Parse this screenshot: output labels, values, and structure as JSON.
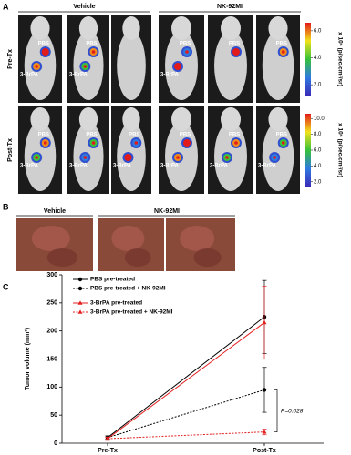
{
  "panel_a": {
    "label": "A",
    "groups": [
      "Vehicle",
      "NK-92MI"
    ],
    "rows": [
      {
        "name": "Pre-Tx",
        "colorbar": {
          "unit": "x 10⁶ (p/sec/cm²/sr)",
          "lim": [
            1.2,
            6.6
          ],
          "ticks": [
            {
              "value": 2,
              "label": "2.0"
            },
            {
              "value": 4,
              "label": "4.0"
            },
            {
              "value": 6,
              "label": "6.0"
            }
          ]
        },
        "mice": [
          {
            "labels": [
              "PBS",
              "3-BrPA"
            ]
          },
          {
            "labels": [
              "PBS",
              "3-BrPA"
            ]
          },
          {
            "labels": []
          },
          {
            "labels": [
              "PBS",
              "3-BrPA"
            ]
          },
          {
            "labels": [
              "PBS"
            ]
          },
          {
            "labels": [
              "PBS"
            ]
          }
        ]
      },
      {
        "name": "Post-Tx",
        "colorbar": {
          "unit": "x 10⁶ (p/sec/cm²/sr)",
          "lim": [
            1.4,
            10.6
          ],
          "ticks": [
            {
              "value": 2,
              "label": "2.0"
            },
            {
              "value": 4,
              "label": "4.0"
            },
            {
              "value": 6,
              "label": "6.0"
            },
            {
              "value": 8,
              "label": "8.0"
            },
            {
              "value": 10,
              "label": "10.0"
            }
          ]
        },
        "mice": [
          {
            "labels": [
              "PBS",
              "3-BrPA"
            ]
          },
          {
            "labels": [
              "PBS",
              "3-BrPA"
            ]
          },
          {
            "labels": [
              "PBS",
              "3-BrPA"
            ]
          },
          {
            "labels": [
              "PBS",
              "3-BrPA"
            ]
          },
          {
            "labels": [
              "PBS",
              "3-BrPA"
            ]
          },
          {
            "labels": [
              "PBS",
              "3-BrPA"
            ]
          }
        ]
      }
    ]
  },
  "panel_b": {
    "label": "B",
    "groups": [
      "Vehicle",
      "NK-92MI"
    ]
  },
  "chart_data": {
    "type": "line",
    "panel_label": "C",
    "y_label": "Tumor volume (mm³)",
    "categories": [
      "Pre-Tx",
      "Post-Tx"
    ],
    "ylim": [
      0,
      300
    ],
    "yticks": [
      0,
      50,
      100,
      150,
      200,
      250,
      300
    ],
    "series": [
      {
        "name": "PBS pre-treated",
        "color": "#000000",
        "dash": "solid",
        "marker": "circle",
        "values": [
          10,
          225
        ],
        "errors": [
          3,
          65
        ]
      },
      {
        "name": "PBS pre-treated + NK-92MI",
        "color": "#000000",
        "dash": "dotted",
        "marker": "circle",
        "values": [
          10,
          95
        ],
        "errors": [
          3,
          40
        ]
      },
      {
        "name": "3-BrPA pre-treated",
        "color": "#e32020",
        "dash": "solid",
        "marker": "triangle",
        "values": [
          8,
          215
        ],
        "errors": [
          3,
          65
        ]
      },
      {
        "name": "3-BrPA pre-treated + NK-92MI",
        "color": "#e32020",
        "dash": "dotted",
        "marker": "triangle",
        "values": [
          8,
          20
        ],
        "errors": [
          2,
          5
        ]
      }
    ],
    "annotation": "P=0.028"
  }
}
